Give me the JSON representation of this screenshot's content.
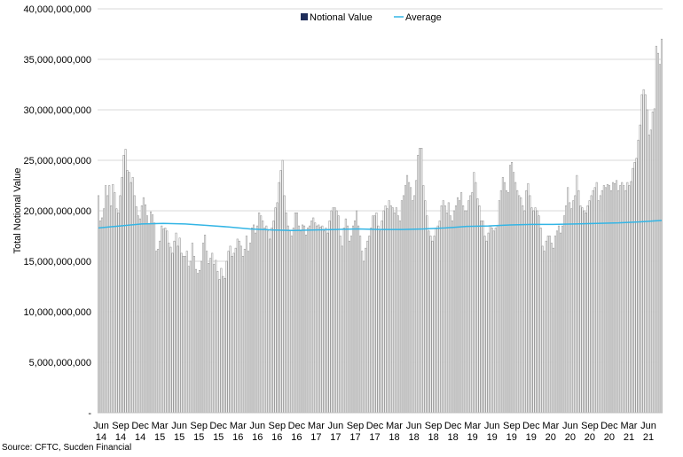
{
  "chart_data": {
    "type": "bar",
    "xlabel": "",
    "ylabel": "Total Notional Value",
    "ylim": [
      0,
      40000000
    ],
    "yticks": [
      0,
      5000000,
      10000000,
      15000000,
      20000000,
      25000000,
      30000000,
      35000000,
      40000000
    ],
    "ytick_labels": [
      "-",
      "5,000,000,000",
      "10,000,000,000",
      "15,000,000,000",
      "20,000,000,000",
      "25,000,000,000",
      "30,000,000,000",
      "35,000,000,000",
      "40,000,000,000"
    ],
    "x_tick_labels": [
      [
        "Jun",
        "14"
      ],
      [
        "Sep",
        "14"
      ],
      [
        "Dec",
        "14"
      ],
      [
        "Mar",
        "15"
      ],
      [
        "Jun",
        "15"
      ],
      [
        "Sep",
        "15"
      ],
      [
        "Dec",
        "15"
      ],
      [
        "Mar",
        "16"
      ],
      [
        "Jun",
        "16"
      ],
      [
        "Sep",
        "16"
      ],
      [
        "Dec",
        "16"
      ],
      [
        "Mar",
        "17"
      ],
      [
        "Jun",
        "17"
      ],
      [
        "Sep",
        "17"
      ],
      [
        "Dec",
        "17"
      ],
      [
        "Mar",
        "18"
      ],
      [
        "Jun",
        "18"
      ],
      [
        "Sep",
        "18"
      ],
      [
        "Dec",
        "18"
      ],
      [
        "Mar",
        "19"
      ],
      [
        "Jun",
        "19"
      ],
      [
        "Sep",
        "19"
      ],
      [
        "Dec",
        "19"
      ],
      [
        "Mar",
        "20"
      ],
      [
        "Jun",
        "20"
      ],
      [
        "Sep",
        "20"
      ],
      [
        "Dec",
        "20"
      ],
      [
        "Mar",
        "21"
      ],
      [
        "Jun",
        "21"
      ]
    ],
    "legend_position": "top-center",
    "grid": "horizontal",
    "series": [
      {
        "name": "Notional Value",
        "type": "bar",
        "color": "#b0b0b0",
        "legend_color": "#1f2d5a",
        "values": [
          21.5,
          19.0,
          19.3,
          20.2,
          22.5,
          21.5,
          22.5,
          20.5,
          22.6,
          21.8,
          20.2,
          19.8,
          21.5,
          23.3,
          25.5,
          26.1,
          24.0,
          23.8,
          22.8,
          23.3,
          21.5,
          20.4,
          19.5,
          19.2,
          20.5,
          21.3,
          20.6,
          19.5,
          18.7,
          19.9,
          19.6,
          18.8,
          16.0,
          16.2,
          17.0,
          18.5,
          18.2,
          18.3,
          18.0,
          16.8,
          16.4,
          15.8,
          17.0,
          17.8,
          16.5,
          17.3,
          15.8,
          15.5,
          15.5,
          16.0,
          14.5,
          15.0,
          16.8,
          15.5,
          14.2,
          13.8,
          14.1,
          15.0,
          16.8,
          17.6,
          16.0,
          14.8,
          15.3,
          15.8,
          14.7,
          15.1,
          14.0,
          13.2,
          14.3,
          13.5,
          13.3,
          15.0,
          16.0,
          16.5,
          15.5,
          15.8,
          16.3,
          17.2,
          17.0,
          16.5,
          15.5,
          16.2,
          17.5,
          16.0,
          16.8,
          18.3,
          18.6,
          17.8,
          18.5,
          19.8,
          19.5,
          19.0,
          18.3,
          18.5,
          18.0,
          17.2,
          18.3,
          19.0,
          20.3,
          20.8,
          22.8,
          24.0,
          25.0,
          21.5,
          19.8,
          18.5,
          18.0,
          17.5,
          18.3,
          19.8,
          19.8,
          18.5,
          18.0,
          18.6,
          18.5,
          17.6,
          18.3,
          18.5,
          19.0,
          19.3,
          18.8,
          18.5,
          18.6,
          18.4,
          18.5,
          18.0,
          18.3,
          17.8,
          19.0,
          20.0,
          20.3,
          20.3,
          20.0,
          19.5,
          17.5,
          16.5,
          18.3,
          19.2,
          18.5,
          17.0,
          17.5,
          18.5,
          19.0,
          20.0,
          18.5,
          17.5,
          16.0,
          15.0,
          16.3,
          17.0,
          17.5,
          18.3,
          19.5,
          19.5,
          19.8,
          18.5,
          18.0,
          19.0,
          20.0,
          20.5,
          20.2,
          21.0,
          20.5,
          20.3,
          19.8,
          20.3,
          19.5,
          19.0,
          21.0,
          21.5,
          22.5,
          23.5,
          22.8,
          22.3,
          21.0,
          21.5,
          23.0,
          25.5,
          26.2,
          26.2,
          22.5,
          21.0,
          19.5,
          18.0,
          17.5,
          17.0,
          17.5,
          18.3,
          18.5,
          19.0,
          20.5,
          21.0,
          20.5,
          19.8,
          20.8,
          19.5,
          19.0,
          20.0,
          20.5,
          21.3,
          21.0,
          21.8,
          20.5,
          20.0,
          20.0,
          21.0,
          21.5,
          21.8,
          23.8,
          22.8,
          21.2,
          20.5,
          19.0,
          19.0,
          17.5,
          17.0,
          17.8,
          18.5,
          18.3,
          18.0,
          18.3,
          18.5,
          21.0,
          22.0,
          23.3,
          22.8,
          22.0,
          21.8,
          24.5,
          24.8,
          23.8,
          22.8,
          22.0,
          21.5,
          21.3,
          20.5,
          20.0,
          22.0,
          22.7,
          21.5,
          20.3,
          20.0,
          20.3,
          20.0,
          19.5,
          18.3,
          16.5,
          16.0,
          17.0,
          17.5,
          17.5,
          16.8,
          16.3,
          17.5,
          18.0,
          18.5,
          17.8,
          18.5,
          19.5,
          20.5,
          22.3,
          20.8,
          20.2,
          21.0,
          21.5,
          23.5,
          22.0,
          20.5,
          20.3,
          20.0,
          19.8,
          20.5,
          21.0,
          21.5,
          22.0,
          22.3,
          22.8,
          21.0,
          21.5,
          22.0,
          22.5,
          22.3,
          22.6,
          22.5,
          22.0,
          22.8,
          22.7,
          23.0,
          22.0,
          22.5,
          22.8,
          22.5,
          22.0,
          22.8,
          22.5,
          22.9,
          24.2,
          24.8,
          25.2,
          27.0,
          28.5,
          31.5,
          32.0,
          31.5,
          30.0,
          27.5,
          28.0,
          29.8,
          30.1,
          36.3,
          35.6,
          34.5,
          37.0
        ]
      },
      {
        "name": "Average",
        "type": "line",
        "color": "#33b5e5",
        "x_start_index": 0,
        "x_end_index": 312,
        "points": [
          [
            0,
            18.3
          ],
          [
            12,
            18.5
          ],
          [
            24,
            18.7
          ],
          [
            36,
            18.75
          ],
          [
            48,
            18.7
          ],
          [
            60,
            18.55
          ],
          [
            72,
            18.4
          ],
          [
            84,
            18.2
          ],
          [
            96,
            18.1
          ],
          [
            108,
            18.05
          ],
          [
            120,
            18.1
          ],
          [
            132,
            18.15
          ],
          [
            144,
            18.2
          ],
          [
            156,
            18.15
          ],
          [
            168,
            18.15
          ],
          [
            180,
            18.2
          ],
          [
            192,
            18.3
          ],
          [
            204,
            18.45
          ],
          [
            216,
            18.5
          ],
          [
            228,
            18.6
          ],
          [
            240,
            18.65
          ],
          [
            252,
            18.65
          ],
          [
            264,
            18.7
          ],
          [
            276,
            18.75
          ],
          [
            288,
            18.8
          ],
          [
            300,
            18.9
          ],
          [
            312,
            19.05
          ]
        ]
      }
    ],
    "annotations": []
  },
  "source_note": "Source: CFTC, Sucden Financial"
}
